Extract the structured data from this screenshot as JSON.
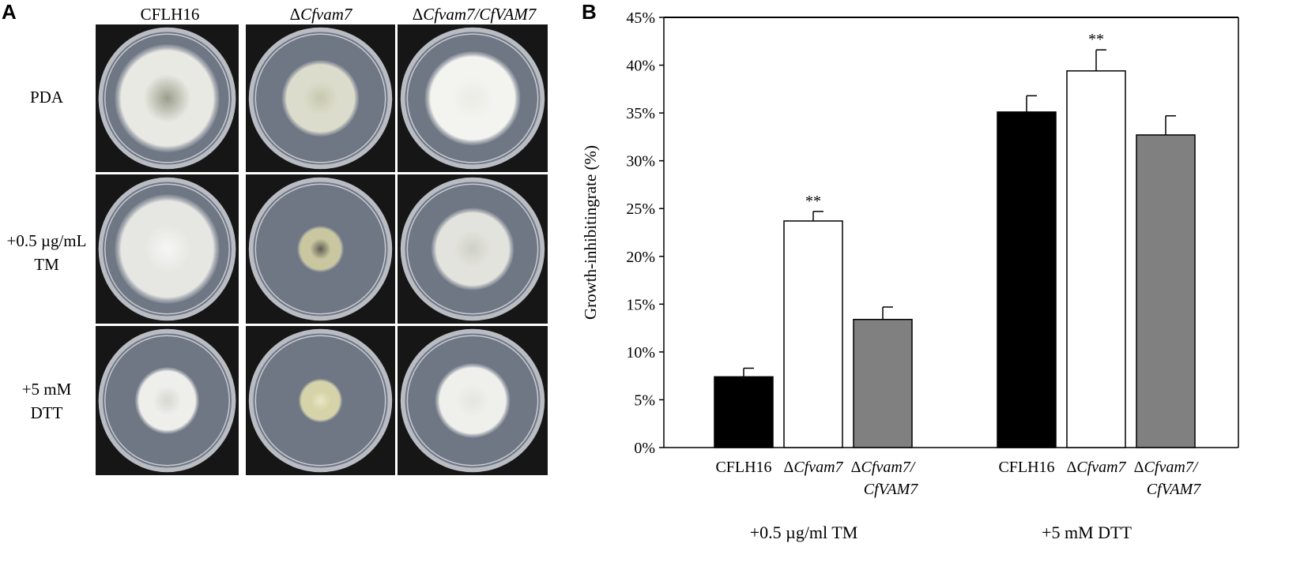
{
  "panel_a": {
    "letter": "A",
    "columns": [
      {
        "prefix": "",
        "name": "CFLH16",
        "italic": false
      },
      {
        "prefix": "Δ",
        "name": "Cfvam7",
        "italic": true
      },
      {
        "prefix": "Δ",
        "name": "Cfvam7/CfVAM7",
        "italic": true
      }
    ],
    "rows": [
      {
        "lines": [
          "PDA"
        ]
      },
      {
        "lines": [
          "+0.5 µg/mL",
          "TM"
        ]
      },
      {
        "lines": [
          "+5 mM",
          "DTT"
        ]
      }
    ],
    "plates": [
      [
        {
          "colony": 0.85,
          "tone": "#e9e9e3",
          "center": "#9a9e8a"
        },
        {
          "colony": 0.6,
          "tone": "#dcdccd",
          "center": "#c8c8ae"
        },
        {
          "colony": 0.74,
          "tone": "#f3f3ef",
          "center": "#ecece6"
        }
      ],
      [
        {
          "colony": 0.85,
          "tone": "#e6e6e2",
          "center": "#f6f6f6"
        },
        {
          "colony": 0.36,
          "tone": "#c9c6a0",
          "center": "#5e5e52"
        },
        {
          "colony": 0.64,
          "tone": "#e3e3dd",
          "center": "#cfd0c6"
        }
      ],
      [
        {
          "colony": 0.52,
          "tone": "#eeeeea",
          "center": "#d8d8d2"
        },
        {
          "colony": 0.34,
          "tone": "#d6d3a8",
          "center": "#e8e6c6"
        },
        {
          "colony": 0.58,
          "tone": "#efefeb",
          "center": "#e6e6e0"
        }
      ]
    ]
  },
  "panel_b": {
    "letter": "B"
  },
  "chart_data": {
    "type": "bar",
    "ylabel": "Growth-inhibitingrate (%)",
    "ylim": [
      0,
      45
    ],
    "yticks": [
      0,
      5,
      10,
      15,
      20,
      25,
      30,
      35,
      40,
      45
    ],
    "ytick_suffix": "%",
    "groups": [
      {
        "label": "+0.5 µg/ml TM",
        "bars": [
          {
            "prefix": "",
            "label": "CFLH16",
            "label_line2": "",
            "italic": false,
            "value": 7.4,
            "error": 0.9,
            "color": "#000000",
            "star": ""
          },
          {
            "prefix": "Δ",
            "label": "Cfvam7",
            "label_line2": "",
            "italic": true,
            "value": 23.7,
            "error": 1.0,
            "color": "#ffffff",
            "star": "**"
          },
          {
            "prefix": "Δ",
            "label": "Cfvam7/",
            "label_line2": "CfVAM7",
            "italic": true,
            "value": 13.4,
            "error": 1.3,
            "color": "#808080",
            "star": ""
          }
        ]
      },
      {
        "label": "+5 mM DTT",
        "bars": [
          {
            "prefix": "",
            "label": "CFLH16",
            "label_line2": "",
            "italic": false,
            "value": 35.1,
            "error": 1.7,
            "color": "#000000",
            "star": ""
          },
          {
            "prefix": "Δ",
            "label": "Cfvam7",
            "label_line2": "",
            "italic": true,
            "value": 39.4,
            "error": 2.2,
            "color": "#ffffff",
            "star": "**"
          },
          {
            "prefix": "Δ",
            "label": "Cfvam7/",
            "label_line2": "CfVAM7",
            "italic": true,
            "value": 32.7,
            "error": 2.0,
            "color": "#808080",
            "star": ""
          }
        ]
      }
    ]
  }
}
